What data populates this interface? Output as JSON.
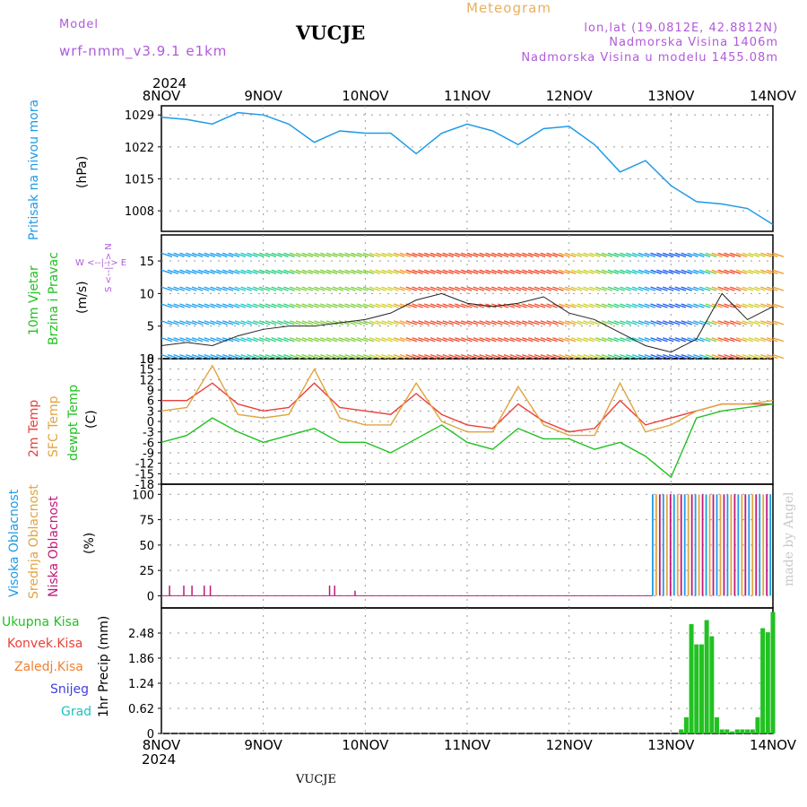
{
  "header": {
    "model_label": "Model",
    "model_name": "wrf-nmm_v3.9.1 e1km",
    "station": "VUCJE",
    "meteogram": "Meteogram",
    "lonlat": "lon,lat (19.0812E, 42.8812N)",
    "elevation": "Nadmorska Visina 1406m",
    "model_elevation": "Nadmorska Visina u modelu 1455.08m",
    "footer_station": "VUCJE",
    "watermark": "made by Angel"
  },
  "colors": {
    "pressure": "#1e9be6",
    "temp2m": "#e8403a",
    "sfc": "#e0a440",
    "dewpt": "#22c122",
    "high_cloud": "#1e9be6",
    "mid_cloud": "#e0a440",
    "low_cloud": "#c0187a",
    "precip": "#22c122",
    "header_purple": "#b05ad8",
    "meteogram": "#e8b060"
  },
  "time_axis": {
    "year_top": "2024",
    "year_bottom": "2024",
    "labels": [
      "8NOV",
      "9NOV",
      "10NOV",
      "11NOV",
      "12NOV",
      "13NOV",
      "14NOV"
    ]
  },
  "panels": {
    "pressure": {
      "ylabel_name": "Pritisak na nivou mora",
      "unit": "(hPa)",
      "ticks": [
        "1029",
        "1022",
        "1015",
        "1008"
      ]
    },
    "wind": {
      "ylabel_name1": "10m Vjetar",
      "ylabel_name2": "Brzina i Pravac",
      "unit": "(m/s)",
      "ticks": [
        "15",
        "10",
        "5",
        "0"
      ],
      "compass": "W <--|--> E",
      "compass2": "S <--|--> N"
    },
    "temperature": {
      "label1": "2m Temp",
      "label2": "SFC Temp",
      "label3": "dewpt Temp",
      "unit": "(C)",
      "ticks": [
        "18",
        "15",
        "12",
        "9",
        "6",
        "3",
        "0",
        "-3",
        "-6",
        "-9",
        "-12",
        "-15",
        "-18"
      ]
    },
    "cloud": {
      "label1": "Visoka Oblacnost",
      "label2": "Srednja Oblacnost",
      "label3": "Niska Oblacnost",
      "unit": "(%)",
      "ticks": [
        "100",
        "75",
        "50",
        "25",
        "0"
      ]
    },
    "precip": {
      "legend": [
        "Ukupna Kisa",
        "Konvek.Kisa",
        "Zaledj.Kisa",
        "Snijeg",
        "Grad"
      ],
      "legend_colors": [
        "#22c122",
        "#e8403a",
        "#f08030",
        "#4040e0",
        "#20c0c0"
      ],
      "ylabel": "1hr Precip (mm)",
      "ticks": [
        "2.48",
        "1.86",
        "1.24",
        "0.62",
        "0"
      ]
    }
  },
  "chart_data": [
    {
      "type": "line",
      "title": "Pritisak na nivou mora",
      "ylabel": "(hPa)",
      "ylim": [
        1003.5,
        1031
      ],
      "x_unit": "days since 8NOV 00:00",
      "x": [
        0,
        0.25,
        0.5,
        0.75,
        1.0,
        1.25,
        1.5,
        1.75,
        2.0,
        2.25,
        2.5,
        2.75,
        3.0,
        3.25,
        3.5,
        3.75,
        4.0,
        4.25,
        4.5,
        4.75,
        5.0,
        5.25,
        5.5,
        5.75,
        6.0
      ],
      "series": [
        {
          "name": "Pritisak na nivou mora",
          "values": [
            1028.5,
            1028,
            1027,
            1029.5,
            1029,
            1027,
            1023,
            1025.5,
            1025,
            1025,
            1020.5,
            1025,
            1027,
            1025.5,
            1022.5,
            1026,
            1026.5,
            1022.5,
            1016.5,
            1019,
            1013.5,
            1010,
            1009.5,
            1008.5,
            1005
          ]
        }
      ]
    },
    {
      "type": "line",
      "title": "10m Vjetar Brzina i Pravac",
      "ylabel": "(m/s)",
      "ylim": [
        0,
        19
      ],
      "x": [
        0,
        0.25,
        0.5,
        0.75,
        1.0,
        1.25,
        1.5,
        1.75,
        2.0,
        2.25,
        2.5,
        2.75,
        3.0,
        3.25,
        3.5,
        3.75,
        4.0,
        4.25,
        4.5,
        4.75,
        5.0,
        5.25,
        5.5,
        5.75,
        6.0
      ],
      "series": [
        {
          "name": "wind speed",
          "values": [
            2,
            2.5,
            2,
            3.5,
            4.5,
            5,
            5,
            5.5,
            6,
            7,
            9,
            10,
            8.5,
            8,
            8.5,
            9.5,
            7,
            6,
            4,
            2,
            1,
            3,
            10,
            6,
            8
          ]
        }
      ]
    },
    {
      "type": "line",
      "title": "Temperature",
      "ylabel": "(C)",
      "ylim": [
        -18,
        18
      ],
      "x": [
        0,
        0.25,
        0.5,
        0.75,
        1.0,
        1.25,
        1.5,
        1.75,
        2.0,
        2.25,
        2.5,
        2.75,
        3.0,
        3.25,
        3.5,
        3.75,
        4.0,
        4.25,
        4.5,
        4.75,
        5.0,
        5.25,
        5.5,
        5.75,
        6.0
      ],
      "series": [
        {
          "name": "2m Temp",
          "values": [
            6,
            6,
            11,
            5,
            3,
            4,
            11,
            4,
            3,
            2,
            8,
            2,
            -1,
            -2,
            5,
            0,
            -3,
            -2,
            6,
            -1,
            1,
            3,
            5,
            5,
            5
          ]
        },
        {
          "name": "SFC Temp",
          "values": [
            3,
            4,
            16,
            2,
            1,
            2,
            15,
            1,
            -1,
            -1,
            11,
            0,
            -3,
            -3,
            10,
            -1,
            -4,
            -4,
            11,
            -3,
            -1,
            3,
            5,
            5,
            6
          ]
        },
        {
          "name": "dewpt Temp",
          "values": [
            -6,
            -4,
            1,
            -3,
            -6,
            -4,
            -2,
            -6,
            -6,
            -9,
            -5,
            -1,
            -6,
            -8,
            -2,
            -5,
            -5,
            -8,
            -6,
            -10,
            -16,
            1,
            3,
            4,
            5
          ]
        }
      ]
    },
    {
      "type": "bar",
      "title": "Oblacnost",
      "ylabel": "(%)",
      "ylim": [
        0,
        100
      ],
      "series": [
        {
          "name": "Visoka Oblacnost",
          "values": [
            0,
            0,
            0,
            0,
            0,
            100,
            100
          ]
        },
        {
          "name": "Srednja Oblacnost",
          "values": [
            0,
            0,
            0,
            0,
            0,
            100,
            100
          ]
        },
        {
          "name": "Niska Oblacnost",
          "values": [
            10,
            10,
            10,
            0,
            0,
            100,
            100
          ]
        }
      ],
      "categories": [
        "8NOV",
        "9NOV",
        "10NOV",
        "11NOV",
        "12NOV",
        "13NOV",
        "14NOV"
      ]
    },
    {
      "type": "bar",
      "title": "1hr Precip",
      "ylabel": "(mm)",
      "ylim": [
        0,
        3.1
      ],
      "x": [
        5.1,
        5.15,
        5.2,
        5.25,
        5.3,
        5.35,
        5.4,
        5.45,
        5.5,
        5.55,
        5.6,
        5.65,
        5.7,
        5.75,
        5.8,
        5.85,
        5.9,
        5.95,
        6.0
      ],
      "series": [
        {
          "name": "Ukupna Kisa",
          "values": [
            0.1,
            0.4,
            2.7,
            2.2,
            2.2,
            2.8,
            2.4,
            0.4,
            0.1,
            0.1,
            0.05,
            0.1,
            0.1,
            0.1,
            0.1,
            0.4,
            2.6,
            2.5,
            3.0
          ]
        }
      ]
    }
  ]
}
